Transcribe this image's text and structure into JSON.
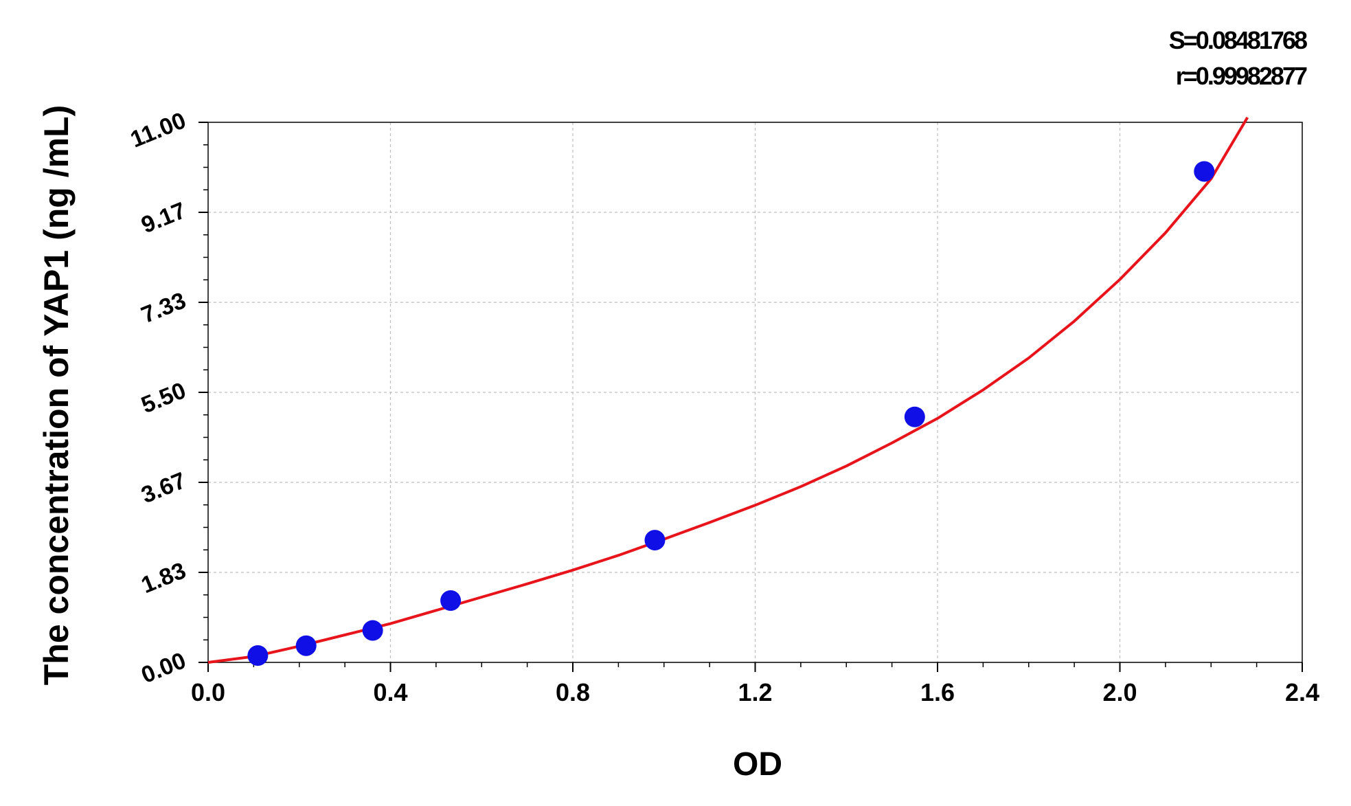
{
  "stats": {
    "s_text": "S=0.08481768",
    "r_text": "r=0.99982877"
  },
  "colors": {
    "curve": "#e8141c",
    "points": "#1010e6",
    "grid": "#bdbdbd",
    "axis": "#000000"
  },
  "chart_data": {
    "type": "scatter",
    "title": "",
    "xlabel": "OD",
    "ylabel": "The concentration of YAP1 (ng /mL)",
    "xlim": [
      0.0,
      2.4
    ],
    "ylim": [
      0.0,
      11.0
    ],
    "x_ticks": [
      "0.0",
      "0.4",
      "0.8",
      "1.2",
      "1.6",
      "2.0",
      "2.4"
    ],
    "y_ticks": [
      "0.00",
      "1.83",
      "3.67",
      "5.50",
      "7.33",
      "9.17",
      "11.00"
    ],
    "grid": true,
    "series": [
      {
        "type": "scatter",
        "x": [
          0.109,
          0.215,
          0.361,
          0.532,
          0.98,
          1.55,
          2.185
        ],
        "y": [
          0.14,
          0.34,
          0.65,
          1.26,
          2.49,
          5.0,
          10.0
        ]
      },
      {
        "type": "line",
        "x": [
          0.0,
          0.1,
          0.2,
          0.3,
          0.4,
          0.5,
          0.6,
          0.7,
          0.8,
          0.9,
          1.0,
          1.1,
          1.2,
          1.3,
          1.4,
          1.5,
          1.6,
          1.7,
          1.8,
          1.9,
          2.0,
          2.1,
          2.2,
          2.28
        ],
        "y": [
          0.0,
          0.12,
          0.33,
          0.56,
          0.79,
          1.06,
          1.33,
          1.6,
          1.88,
          2.18,
          2.51,
          2.85,
          3.2,
          3.58,
          4.0,
          4.47,
          4.97,
          5.55,
          6.2,
          6.95,
          7.8,
          8.75,
          9.85,
          11.1
        ]
      }
    ]
  }
}
